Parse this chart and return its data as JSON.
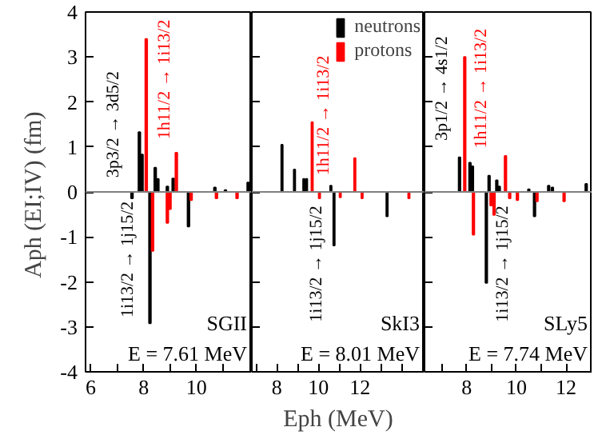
{
  "chart_data": [
    {
      "type": "bar",
      "ylabel": "Aph (EI;IV)  (fm)",
      "xlim": [
        5.8,
        12.1
      ],
      "ylim": [
        -4,
        4
      ],
      "xticks": [
        6,
        {
          "value": 7,
          "label": null
        },
        8,
        {
          "value": 9,
          "label": null
        },
        10,
        {
          "value": 11,
          "label": null
        }
      ],
      "yticks": [
        -4,
        -3,
        -2,
        -1,
        0,
        1,
        2,
        3,
        4
      ],
      "grid": false,
      "legend": false,
      "series": [
        {
          "color": "#000000",
          "x": [
            7.56,
            7.84,
            7.94,
            8.24,
            8.44,
            8.54,
            8.9,
            9.12,
            9.7,
            10.7,
            11.1,
            11.96
          ],
          "values": [
            -0.14,
            1.33,
            0.83,
            -2.92,
            0.54,
            0.29,
            0.12,
            0.3,
            -0.77,
            0.1,
            0.04,
            0.21
          ]
        },
        {
          "color": "#ff0000",
          "x": [
            8.1,
            8.34,
            8.9,
            9.0,
            9.24,
            9.8,
            10.76,
            11.54
          ],
          "values": [
            3.4,
            -1.31,
            -0.69,
            -0.38,
            0.87,
            -0.18,
            -0.14,
            -0.14
          ]
        }
      ],
      "ref_lines": [
        {
          "axis": "y",
          "value": 0,
          "color": "#808080"
        }
      ],
      "annotations": [
        "3p3/2 → 3d5/2",
        "1h11/2 → 1i13/2",
        "1i13/2 → 1j15/2",
        "SGII",
        "E = 7.61 MeV"
      ]
    },
    {
      "type": "bar",
      "xlabel": "Eph (MeV)",
      "xlim": [
        6.8,
        15.1
      ],
      "ylim": [
        -4,
        4
      ],
      "xticks": [
        {
          "value": 7,
          "label": null
        },
        8,
        {
          "value": 9,
          "label": null
        },
        10,
        {
          "value": 11,
          "label": null
        },
        12,
        {
          "value": 13,
          "label": null
        },
        {
          "value": 14,
          "label": null
        }
      ],
      "yticks": [
        {
          "value": -4,
          "label": null
        },
        {
          "value": -3,
          "label": null
        },
        {
          "value": -2,
          "label": null
        },
        {
          "value": -1,
          "label": null
        },
        {
          "value": 0,
          "label": null
        },
        {
          "value": 1,
          "label": null
        },
        {
          "value": 2,
          "label": null
        },
        {
          "value": 3,
          "label": null
        },
        {
          "value": 4,
          "label": null
        }
      ],
      "tick_labels": "x",
      "grid": false,
      "legend": "top right",
      "series": [
        {
          "name": "neutrons",
          "color": "#000000",
          "x": [
            8.25,
            8.85,
            9.3,
            9.43,
            10.6,
            10.75,
            13.3
          ],
          "values": [
            1.05,
            0.5,
            0.29,
            0.29,
            0.14,
            -1.19,
            -0.54
          ]
        },
        {
          "name": "protons",
          "color": "#ff0000",
          "x": [
            9.7,
            10.05,
            11.05,
            11.75,
            12.1,
            14.35
          ],
          "values": [
            1.55,
            -0.14,
            -0.12,
            0.75,
            -0.14,
            -0.14
          ]
        }
      ],
      "ref_lines": [
        {
          "axis": "y",
          "value": 0,
          "color": "#808080"
        }
      ],
      "annotations": [
        "1h11/2 → 1i13/2",
        "1i13/2 → 1j15/2",
        "SkI3",
        "E = 8.01 MeV"
      ]
    },
    {
      "type": "bar",
      "xlim": [
        6.3,
        13.06
      ],
      "ylim": [
        -4,
        4
      ],
      "xticks": [
        {
          "value": 7,
          "label": null
        },
        8,
        {
          "value": 9,
          "label": null
        },
        10,
        {
          "value": 11,
          "label": null
        },
        12,
        {
          "value": 13,
          "label": null
        }
      ],
      "yticks": [
        {
          "value": -4,
          "label": null
        },
        {
          "value": -3,
          "label": null
        },
        {
          "value": -2,
          "label": null
        },
        {
          "value": -1,
          "label": null
        },
        {
          "value": 0,
          "label": null
        },
        {
          "value": 1,
          "label": null
        },
        {
          "value": 2,
          "label": null
        },
        {
          "value": 3,
          "label": null
        },
        {
          "value": 4,
          "label": null
        }
      ],
      "tick_labels": "x",
      "grid": false,
      "legend": false,
      "series": [
        {
          "color": "#000000",
          "x": [
            7.71,
            8.13,
            8.23,
            8.79,
            8.9,
            9.21,
            9.31,
            10.5,
            10.73,
            11.3,
            11.45,
            12.81
          ],
          "values": [
            0.77,
            0.65,
            0.57,
            -2.02,
            0.36,
            0.26,
            0.12,
            0.06,
            -0.54,
            0.14,
            0.1,
            0.18
          ]
        },
        {
          "color": "#ff0000",
          "x": [
            7.92,
            8.27,
            8.98,
            9.1,
            9.56,
            9.73,
            10.04,
            10.83,
            11.92
          ],
          "values": [
            3.0,
            -0.95,
            -0.3,
            -0.51,
            0.8,
            -0.14,
            -0.18,
            -0.21,
            -0.21
          ]
        }
      ],
      "ref_lines": [
        {
          "axis": "y",
          "value": 0,
          "color": "#808080"
        }
      ],
      "annotations": [
        "3p1/2 → 4s1/2",
        "1h11/2 → 1i13/2",
        "1i13/2 → 1j15/2",
        "SLy5",
        "E = 7.74 MeV"
      ]
    }
  ]
}
